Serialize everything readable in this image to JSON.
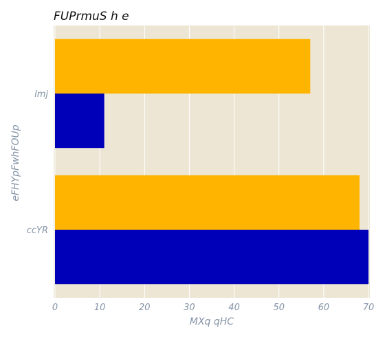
{
  "chart_data": {
    "type": "bar",
    "orientation": "horizontal",
    "title": "FUPrmuS h  e",
    "xlabel": "MXq  qHC",
    "ylabel": "eFHYpFwhFOUp",
    "categories": [
      "lmj",
      "ccYR"
    ],
    "series": [
      {
        "color": "#ffb400",
        "values": [
          57,
          68
        ]
      },
      {
        "color": "#0000b8",
        "values": [
          11,
          70
        ]
      }
    ],
    "xlim": [
      0,
      70
    ],
    "xticks": [
      0,
      10,
      20,
      30,
      40,
      50,
      60,
      70
    ],
    "grid": true,
    "background": "#ede6d4"
  }
}
